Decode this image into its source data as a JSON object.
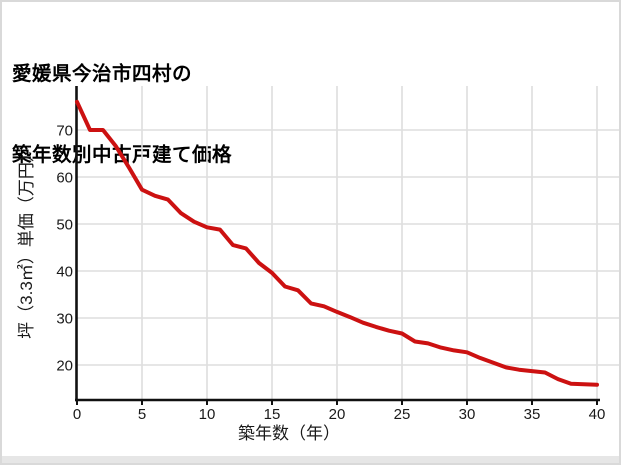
{
  "page": {
    "background": "#ffffff",
    "border_color": "#d9d9d9",
    "footer_strip_color": "#e6e6e6"
  },
  "chart_data": {
    "type": "line",
    "title_lines": [
      "愛媛県今治市四村の",
      "築年数別中古戸建て価格"
    ],
    "xlabel": "築年数（年）",
    "ylabel": "坪（3.3㎡）単価（万円）",
    "x_ticks": [
      0,
      5,
      10,
      15,
      20,
      25,
      30,
      35,
      40
    ],
    "y_ticks": [
      20,
      30,
      40,
      50,
      60,
      70
    ],
    "xlim": [
      0,
      40
    ],
    "ylim": [
      12.3,
      79.4
    ],
    "grid": true,
    "legend_position": "none",
    "line_color": "#cc1111",
    "grid_color": "#dedede",
    "axis_color": "#111111",
    "x": [
      0,
      1,
      2,
      3,
      4,
      5,
      6,
      7,
      8,
      9,
      10,
      11,
      12,
      13,
      14,
      15,
      16,
      17,
      18,
      19,
      20,
      21,
      22,
      23,
      24,
      25,
      26,
      27,
      28,
      29,
      30,
      31,
      32,
      33,
      34,
      35,
      36,
      37,
      38,
      39,
      40
    ],
    "values": [
      76,
      70,
      70,
      66.5,
      62,
      57.3,
      56,
      55.2,
      52.3,
      50.5,
      49.3,
      48.8,
      45.5,
      44.8,
      41.7,
      39.6,
      36.7,
      35.9,
      33.1,
      32.5,
      31.3,
      30.2,
      29,
      28.1,
      27.3,
      26.7,
      25,
      24.6,
      23.7,
      23.1,
      22.7,
      21.5,
      20.5,
      19.5,
      19,
      18.7,
      18.4,
      17,
      16,
      15.9,
      15.8
    ]
  }
}
